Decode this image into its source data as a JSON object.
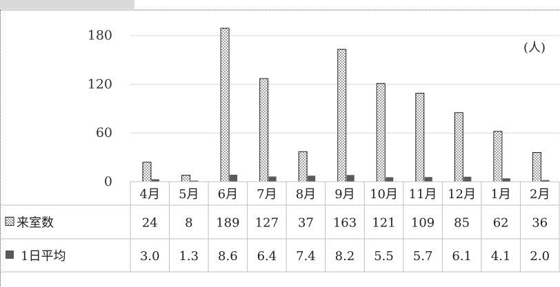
{
  "unit_label": "(人)",
  "colors": {
    "grid": "#d9d9d9",
    "axis": "#bfbfbf",
    "table_border": "#bfbfbf",
    "series2": "#595959",
    "text": "#222222"
  },
  "chart_data": {
    "type": "bar",
    "categories": [
      "4月",
      "5月",
      "6月",
      "7月",
      "8月",
      "9月",
      "10月",
      "11月",
      "12月",
      "1月",
      "2月"
    ],
    "ylim": [
      0,
      200
    ],
    "y_ticks": [
      0,
      60,
      120,
      180
    ],
    "grid": true,
    "legend": "data-table",
    "series": [
      {
        "name": "来室数",
        "legend_icon": "dotted-square-icon",
        "values": [
          24,
          8,
          189,
          127,
          37,
          163,
          121,
          109,
          85,
          62,
          36
        ],
        "value_labels": [
          "24",
          "8",
          "189",
          "127",
          "37",
          "163",
          "121",
          "109",
          "85",
          "62",
          "36"
        ]
      },
      {
        "name": "1日平均",
        "legend_icon": "filled-square-icon",
        "values": [
          3.0,
          1.3,
          8.6,
          6.4,
          7.4,
          8.2,
          5.5,
          5.7,
          6.1,
          4.1,
          2.0
        ],
        "value_labels": [
          "3.0",
          "1.3",
          "8.6",
          "6.4",
          "7.4",
          "8.2",
          "5.5",
          "5.7",
          "6.1",
          "4.1",
          "2.0"
        ]
      }
    ]
  }
}
